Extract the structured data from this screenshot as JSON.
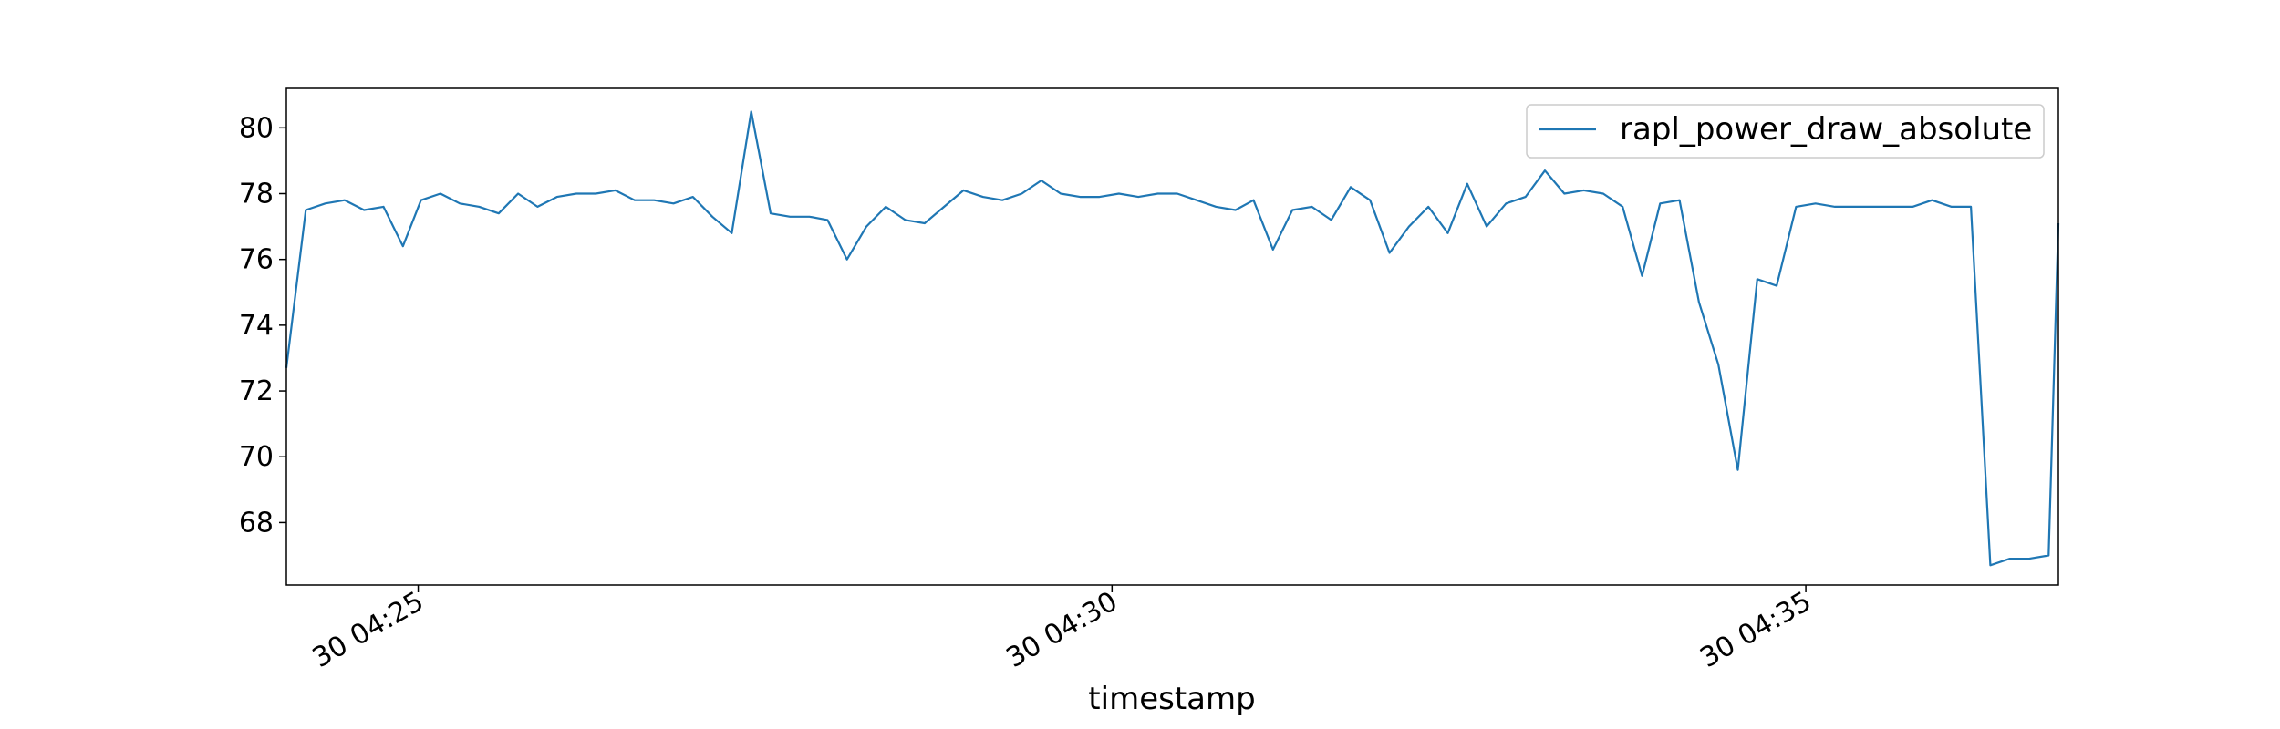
{
  "chart_data": {
    "type": "line",
    "xlabel": "timestamp",
    "ylabel": "",
    "title": "",
    "grid": false,
    "legend_position": "upper right",
    "colors": {
      "series": "#1f77b4",
      "axes": "#000000",
      "legend_border": "#cccccc"
    },
    "x_ticks": [
      {
        "label": "30 04:25",
        "minute": 25
      },
      {
        "label": "30 04:30",
        "minute": 30
      },
      {
        "label": "30 04:35",
        "minute": 35
      }
    ],
    "y_ticks": [
      68,
      70,
      72,
      74,
      76,
      78,
      80
    ],
    "ylim": [
      66.1,
      81.2
    ],
    "xlim_minutes": [
      24.05,
      36.82
    ],
    "series": [
      {
        "name": "rapl_power_draw_absolute",
        "x_minutes": [
          24.05,
          24.19,
          24.33,
          24.47,
          24.61,
          24.75,
          24.89,
          25.02,
          25.16,
          25.3,
          25.44,
          25.58,
          25.72,
          25.86,
          26.0,
          26.14,
          26.28,
          26.42,
          26.56,
          26.7,
          26.84,
          26.98,
          27.12,
          27.26,
          27.4,
          27.54,
          27.68,
          27.82,
          27.95,
          28.09,
          28.23,
          28.37,
          28.51,
          28.65,
          28.79,
          28.93,
          29.07,
          29.21,
          29.35,
          29.49,
          29.63,
          29.77,
          29.91,
          30.05,
          30.19,
          30.33,
          30.47,
          30.61,
          30.75,
          30.89,
          31.02,
          31.16,
          31.3,
          31.44,
          31.58,
          31.72,
          31.86,
          32.0,
          32.14,
          32.28,
          32.42,
          32.56,
          32.7,
          32.84,
          32.98,
          33.12,
          33.26,
          33.4,
          33.54,
          33.68,
          33.82,
          33.95,
          34.09,
          34.23,
          34.37,
          34.51,
          34.65,
          34.79,
          34.93,
          35.07,
          35.21,
          35.35,
          35.49,
          35.63,
          35.77,
          35.91,
          36.05,
          36.19,
          36.33,
          36.47,
          36.61,
          36.75,
          36.82
        ],
        "y": [
          72.7,
          77.5,
          77.7,
          77.8,
          77.5,
          77.6,
          76.4,
          77.8,
          78.0,
          77.7,
          77.6,
          77.4,
          78.0,
          77.6,
          77.9,
          78.0,
          78.0,
          78.1,
          77.8,
          77.8,
          77.7,
          77.9,
          77.3,
          76.8,
          80.5,
          77.4,
          77.3,
          77.3,
          77.2,
          76.0,
          77.0,
          77.6,
          77.2,
          77.1,
          77.6,
          78.1,
          77.9,
          77.8,
          78.0,
          78.4,
          78.0,
          77.9,
          77.9,
          78.0,
          77.9,
          78.0,
          78.0,
          77.8,
          77.6,
          77.5,
          77.8,
          76.3,
          77.5,
          77.6,
          77.2,
          78.2,
          77.8,
          76.2,
          77.0,
          77.6,
          76.8,
          78.3,
          77.0,
          77.7,
          77.9,
          78.7,
          78.0,
          78.1,
          78.0,
          77.6,
          75.5,
          77.7,
          77.8,
          74.7,
          72.8,
          69.6,
          75.4,
          75.2,
          77.6,
          77.7,
          77.6,
          77.6,
          77.6,
          77.6,
          77.6,
          77.8,
          77.6,
          77.6,
          66.7,
          66.9,
          66.9,
          67.0,
          77.1
        ]
      }
    ]
  }
}
